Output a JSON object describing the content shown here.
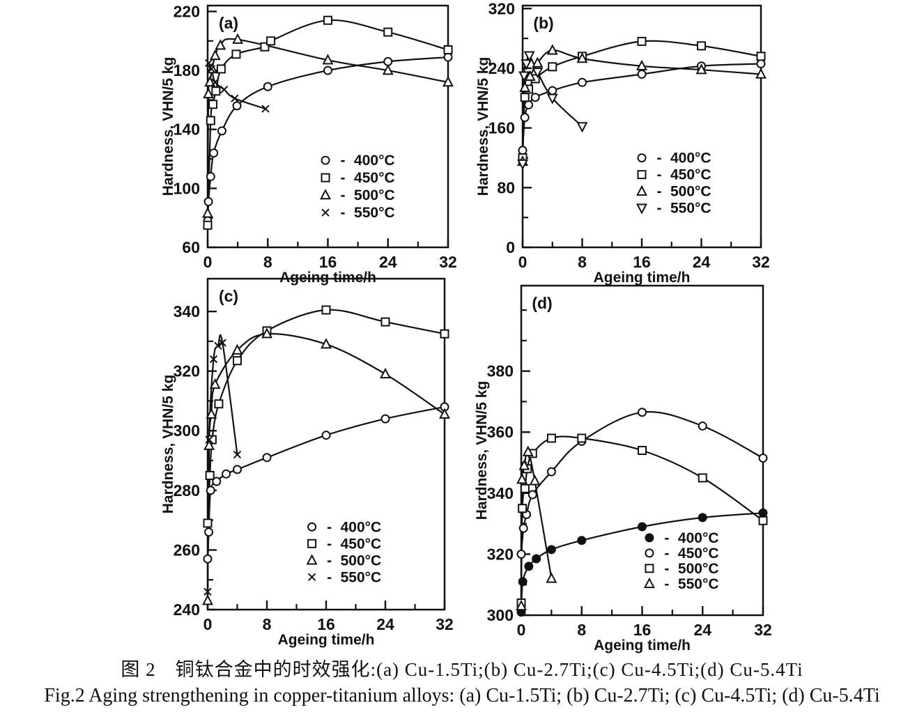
{
  "figure": {
    "caption_zh": "图 2　铜钛合金中的时效强化:(a) Cu-1.5Ti;(b) Cu-2.7Ti;(c) Cu-4.5Ti;(d) Cu-5.4Ti",
    "caption_en": "Fig.2 Aging strengthening in copper-titanium alloys: (a) Cu-1.5Ti; (b) Cu-2.7Ti; (c) Cu-4.5Ti; (d) Cu-5.4Ti"
  },
  "chart_data": [
    {
      "id": "a",
      "panel_label": "(a)",
      "alloy": "Cu-1.5Ti",
      "type": "line",
      "xlabel": "Ageing time/h",
      "ylabel": "Hardness, VHN/5 kg",
      "xlim": [
        0,
        32
      ],
      "ylim": [
        60,
        224
      ],
      "xticks": [
        0,
        8,
        16,
        24,
        32
      ],
      "yticks": [
        60,
        100,
        140,
        180,
        220
      ],
      "xticks_minor": [
        4,
        12,
        20,
        28
      ],
      "yticks_minor": [
        80,
        120,
        160,
        200
      ],
      "grid": false,
      "legend_separator": "-",
      "legend_pos": {
        "x": 0.49,
        "y": 0.64,
        "dy": 25
      },
      "series": [
        {
          "name": "400°C",
          "marker": "circle",
          "filled": false,
          "points": [
            [
              0,
              78
            ],
            [
              0.1,
              91
            ],
            [
              0.4,
              108
            ],
            [
              0.8,
              124
            ],
            [
              1.9,
              139
            ],
            [
              3.9,
              156
            ],
            [
              8,
              169
            ],
            [
              16,
              180
            ],
            [
              24,
              186
            ],
            [
              32,
              189
            ]
          ]
        },
        {
          "name": "450°C",
          "marker": "square",
          "filled": false,
          "points": [
            [
              0,
              75
            ],
            [
              0.4,
              146
            ],
            [
              0.7,
              157
            ],
            [
              1.1,
              166
            ],
            [
              1.8,
              181
            ],
            [
              3.8,
              191
            ],
            [
              7.6,
              196
            ],
            [
              8.4,
              200
            ],
            [
              16,
              214
            ],
            [
              24,
              206
            ],
            [
              32,
              194
            ]
          ]
        },
        {
          "name": "500°C",
          "marker": "triangle-up",
          "filled": false,
          "points": [
            [
              0,
              83
            ],
            [
              0.1,
              164
            ],
            [
              0.3,
              172
            ],
            [
              0.6,
              181
            ],
            [
              1,
              190
            ],
            [
              1.7,
              197
            ],
            [
              4,
              201
            ],
            [
              16,
              187
            ],
            [
              24,
              180
            ],
            [
              32,
              172
            ]
          ]
        },
        {
          "name": "550°C",
          "marker": "x",
          "filled": false,
          "points": [
            [
              0.15,
              185
            ],
            [
              0.5,
              181
            ],
            [
              1,
              172
            ],
            [
              2.2,
              167
            ],
            [
              3.6,
              161
            ],
            [
              7.7,
              154
            ]
          ]
        }
      ]
    },
    {
      "id": "b",
      "panel_label": "(b)",
      "alloy": "Cu-2.7Ti",
      "type": "line",
      "xlabel": "Ageing time/h",
      "ylabel": "Hardness, VHN/5 kg",
      "xlim": [
        0,
        32
      ],
      "ylim": [
        0,
        324
      ],
      "xticks": [
        0,
        8,
        16,
        24,
        32
      ],
      "yticks": [
        0,
        80,
        160,
        240,
        320
      ],
      "xticks_minor": [
        4,
        12,
        20,
        28
      ],
      "yticks_minor": [
        40,
        120,
        200,
        280
      ],
      "grid": false,
      "legend_separator": "-",
      "legend_pos": {
        "x": 0.5,
        "y": 0.63,
        "dy": 24
      },
      "series": [
        {
          "name": "400°C",
          "marker": "circle",
          "filled": false,
          "points": [
            [
              0,
              130
            ],
            [
              0.3,
              174
            ],
            [
              0.8,
              191
            ],
            [
              1.7,
              201
            ],
            [
              4,
              210
            ],
            [
              8,
              221
            ],
            [
              16,
              232
            ],
            [
              24,
              243
            ],
            [
              32,
              246
            ]
          ]
        },
        {
          "name": "450°C",
          "marker": "square",
          "filled": false,
          "points": [
            [
              0,
              120
            ],
            [
              0.3,
              201
            ],
            [
              0.8,
              212
            ],
            [
              1.7,
              226
            ],
            [
              4,
              242
            ],
            [
              8,
              256
            ],
            [
              16,
              276
            ],
            [
              24,
              270
            ],
            [
              32,
              256
            ]
          ]
        },
        {
          "name": "500°C",
          "marker": "triangle-up",
          "filled": false,
          "points": [
            [
              0,
              115
            ],
            [
              0.3,
              214
            ],
            [
              1,
              229
            ],
            [
              2,
              247
            ],
            [
              4,
              264
            ],
            [
              8,
              253
            ],
            [
              16,
              243
            ],
            [
              24,
              238
            ],
            [
              32,
              232
            ]
          ]
        },
        {
          "name": "550°C",
          "marker": "triangle-down",
          "filled": false,
          "points": [
            [
              0,
              112
            ],
            [
              0.2,
              230
            ],
            [
              0.5,
              246
            ],
            [
              0.9,
              257
            ],
            [
              2,
              235
            ],
            [
              4,
              200
            ],
            [
              8,
              162
            ]
          ]
        }
      ]
    },
    {
      "id": "c",
      "panel_label": "(c)",
      "alloy": "Cu-4.5Ti",
      "type": "line",
      "xlabel": "Ageing time/h",
      "ylabel": "Hardness, VHN/5 kg",
      "xlim": [
        0,
        32
      ],
      "ylim": [
        240,
        351
      ],
      "xticks": [
        0,
        8,
        16,
        24,
        32
      ],
      "yticks": [
        240,
        260,
        280,
        300,
        320,
        340
      ],
      "xticks_minor": [
        4,
        12,
        20,
        28
      ],
      "yticks_minor": [
        250,
        270,
        290,
        310,
        330
      ],
      "grid": false,
      "legend_separator": "-",
      "legend_pos": {
        "x": 0.44,
        "y": 0.75,
        "dy": 24
      },
      "series": [
        {
          "name": "400°C",
          "marker": "circle",
          "filled": false,
          "points": [
            [
              0,
              257
            ],
            [
              0.15,
              266
            ],
            [
              0.4,
              280
            ],
            [
              1.2,
              283
            ],
            [
              2.5,
              285.5
            ],
            [
              4,
              287
            ],
            [
              8,
              291
            ],
            [
              16,
              298.5
            ],
            [
              24,
              304
            ],
            [
              32,
              308
            ]
          ]
        },
        {
          "name": "450°C",
          "marker": "square",
          "filled": false,
          "points": [
            [
              0,
              269
            ],
            [
              0.3,
              285
            ],
            [
              0.6,
              297
            ],
            [
              1.5,
              309
            ],
            [
              4,
              323.5
            ],
            [
              8,
              333.5
            ],
            [
              16,
              340.5
            ],
            [
              24,
              336.5
            ],
            [
              32,
              332.5
            ]
          ]
        },
        {
          "name": "500°C",
          "marker": "triangle-up",
          "filled": false,
          "points": [
            [
              0,
              243
            ],
            [
              0.2,
              295
            ],
            [
              0.5,
              305.5
            ],
            [
              1,
              315.5
            ],
            [
              4,
              327
            ],
            [
              8,
              332.5
            ],
            [
              16,
              329
            ],
            [
              24,
              319
            ],
            [
              32,
              305.5
            ]
          ]
        },
        {
          "name": "550°C",
          "marker": "x",
          "filled": false,
          "points": [
            [
              0,
              246
            ],
            [
              0.2,
              297
            ],
            [
              0.8,
              324
            ],
            [
              1.4,
              328.5
            ],
            [
              2,
              329.5
            ],
            [
              4,
              292
            ]
          ]
        }
      ]
    },
    {
      "id": "d",
      "panel_label": "(d)",
      "alloy": "Cu-5.4Ti",
      "type": "line",
      "xlabel": "Ageing time/h",
      "ylabel": "Hardness, VHN/5 kg",
      "xlim": [
        0,
        32
      ],
      "ylim": [
        300,
        408
      ],
      "xticks": [
        0,
        8,
        16,
        24,
        32
      ],
      "yticks": [
        300,
        320,
        340,
        360,
        380
      ],
      "xticks_minor": [
        4,
        12,
        20,
        28
      ],
      "yticks_minor": [
        310,
        330,
        350,
        370,
        390,
        400
      ],
      "grid": false,
      "legend_separator": "-",
      "legend_pos": {
        "x": 0.53,
        "y": 0.765,
        "dy": 22
      },
      "series": [
        {
          "name": "400°C",
          "marker": "circle",
          "filled": true,
          "points": [
            [
              0,
              301
            ],
            [
              0.2,
              311
            ],
            [
              1,
              316
            ],
            [
              2,
              318.5
            ],
            [
              4,
              321.5
            ],
            [
              8,
              324.5
            ],
            [
              16,
              329
            ],
            [
              24,
              332
            ],
            [
              32,
              333.5
            ]
          ]
        },
        {
          "name": "450°C",
          "marker": "circle",
          "filled": false,
          "points": [
            [
              0,
              320
            ],
            [
              0.3,
              328.5
            ],
            [
              0.7,
              333
            ],
            [
              1.5,
              339.5
            ],
            [
              4,
              347
            ],
            [
              8,
              357
            ],
            [
              16,
              366.5
            ],
            [
              24,
              362
            ],
            [
              32,
              351.5
            ]
          ]
        },
        {
          "name": "500°C",
          "marker": "square",
          "filled": false,
          "points": [
            [
              0,
              304
            ],
            [
              0.15,
              335
            ],
            [
              0.5,
              341.5
            ],
            [
              0.8,
              348
            ],
            [
              1.5,
              353
            ],
            [
              4,
              358
            ],
            [
              8,
              358
            ],
            [
              16,
              354
            ],
            [
              24,
              345
            ],
            [
              32,
              331
            ]
          ]
        },
        {
          "name": "550°C",
          "marker": "triangle-up",
          "filled": false,
          "points": [
            [
              0,
              303
            ],
            [
              0.1,
              344.5
            ],
            [
              0.4,
              349
            ],
            [
              0.9,
              353.5
            ],
            [
              1.8,
              344
            ],
            [
              4,
              312
            ]
          ]
        }
      ]
    }
  ]
}
